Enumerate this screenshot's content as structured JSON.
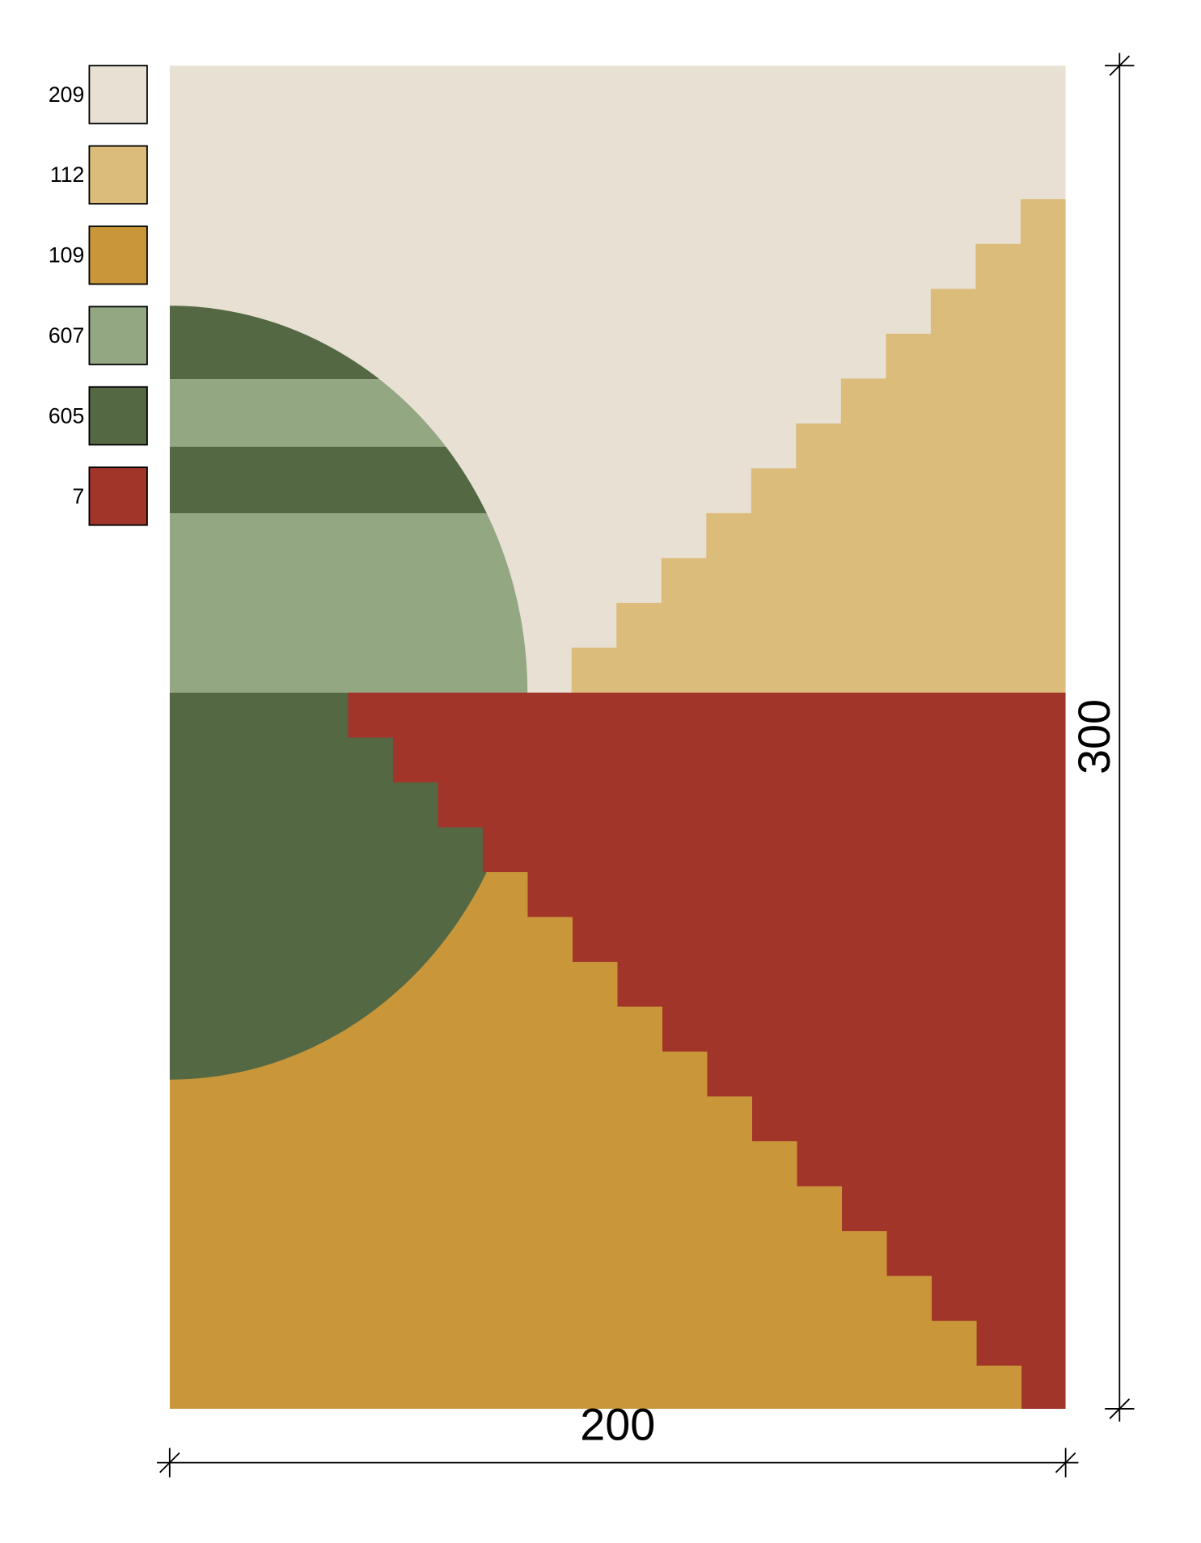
{
  "legend": [
    {
      "label": "209",
      "color": "#e8e1d3"
    },
    {
      "label": "112",
      "color": "#dcbc7a"
    },
    {
      "label": "109",
      "color": "#c9973a"
    },
    {
      "label": "607",
      "color": "#93a783"
    },
    {
      "label": "605",
      "color": "#546843"
    },
    {
      "label": "7",
      "color": "#a2352a"
    }
  ],
  "dimensions": {
    "width": "200",
    "height": "300"
  }
}
